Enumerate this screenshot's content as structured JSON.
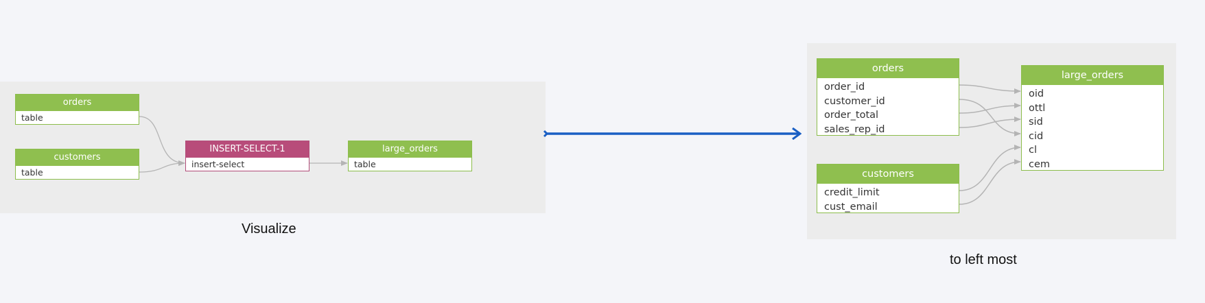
{
  "colors": {
    "background": "#f4f5f9",
    "panel": "#ececec",
    "table_node": "#8fbf4f",
    "process_node": "#b84c7a",
    "edge": "#b4b4b4",
    "transform_arrow": "#1a5fc4"
  },
  "left_diagram": {
    "caption": "Visualize",
    "nodes": {
      "orders": {
        "title": "orders",
        "subtitle": "table"
      },
      "customers": {
        "title": "customers",
        "subtitle": "table"
      },
      "insert_select": {
        "title": "INSERT-SELECT-1",
        "subtitle": "insert-select"
      },
      "large_orders": {
        "title": "large_orders",
        "subtitle": "table"
      }
    }
  },
  "right_diagram": {
    "caption": "to left most",
    "tables": {
      "orders": {
        "title": "orders",
        "columns": [
          "order_id",
          "customer_id",
          "order_total",
          "sales_rep_id"
        ]
      },
      "customers": {
        "title": "customers",
        "columns": [
          "credit_limit",
          "cust_email"
        ]
      },
      "large_orders": {
        "title": "large_orders",
        "columns": [
          "oid",
          "ottl",
          "sid",
          "cid",
          "cl",
          "cem"
        ]
      }
    },
    "column_edges": [
      [
        "orders.order_id",
        "large_orders.oid"
      ],
      [
        "orders.customer_id",
        "large_orders.cid"
      ],
      [
        "orders.order_total",
        "large_orders.ottl"
      ],
      [
        "orders.sales_rep_id",
        "large_orders.sid"
      ],
      [
        "customers.credit_limit",
        "large_orders.cl"
      ],
      [
        "customers.cust_email",
        "large_orders.cem"
      ]
    ]
  }
}
